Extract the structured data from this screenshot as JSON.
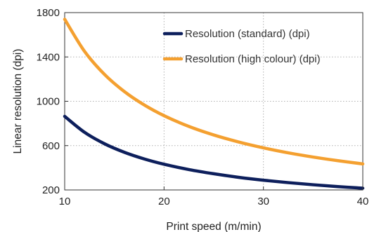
{
  "chart_data": {
    "type": "line",
    "title": "",
    "xlabel": "Print speed (m/min)",
    "ylabel": "Linear resolution (dpi)",
    "xlim": [
      10,
      40
    ],
    "ylim": [
      200,
      1800
    ],
    "xticks": [
      10,
      20,
      30,
      40
    ],
    "yticks": [
      200,
      600,
      1000,
      1400,
      1800
    ],
    "xtick_labels": [
      "10",
      "20",
      "30",
      "40"
    ],
    "ytick_labels": [
      "200",
      "600",
      "1000",
      "1400",
      "1800"
    ],
    "grid": "dotted",
    "legend_position": "top-right",
    "series": [
      {
        "name": "Resolution (standard) (dpi)",
        "color": "#0d1f5c",
        "x": [
          10,
          12,
          14,
          16,
          18,
          20,
          22.5,
          25,
          27.5,
          30,
          32.5,
          35,
          37.5,
          40
        ],
        "y": [
          864,
          720,
          617,
          540,
          480,
          432,
          384,
          346,
          314,
          288,
          266,
          247,
          230,
          216
        ]
      },
      {
        "name": "Resolution (high colour) (dpi)",
        "color": "#f4a030",
        "x": [
          10,
          12,
          14,
          16,
          18,
          20,
          22.5,
          25,
          27.5,
          30,
          32.5,
          35,
          37.5,
          40
        ],
        "y": [
          1740,
          1450,
          1243,
          1088,
          967,
          870,
          773,
          696,
          633,
          580,
          535,
          497,
          464,
          435
        ]
      }
    ]
  }
}
